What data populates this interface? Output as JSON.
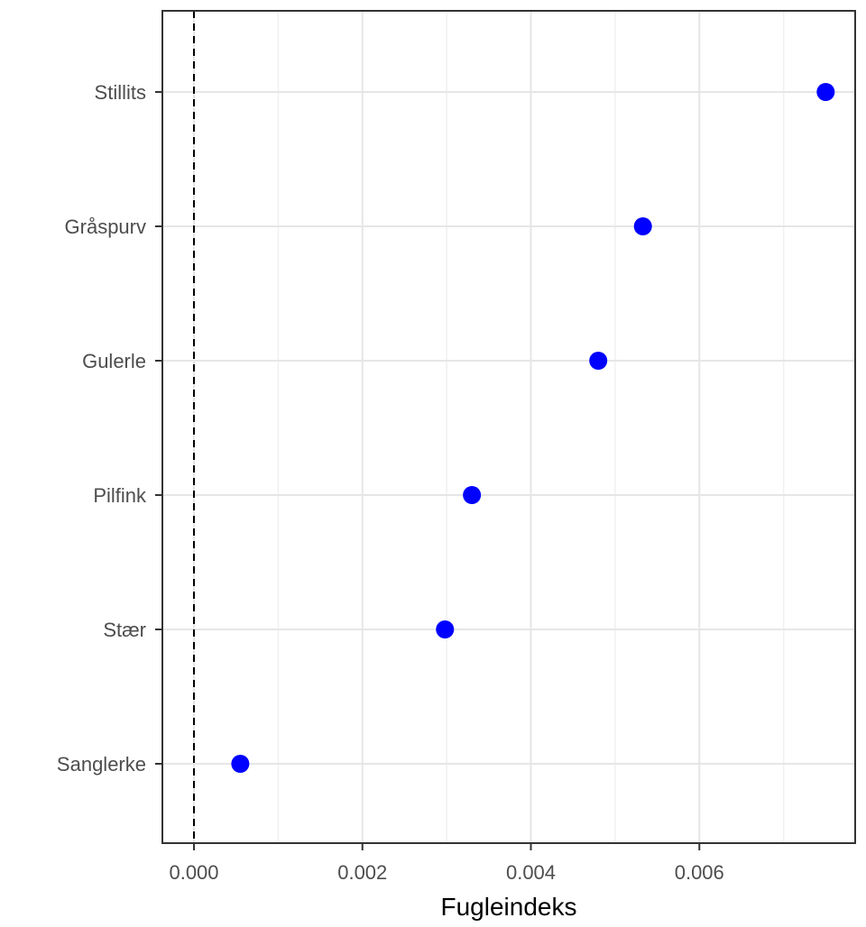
{
  "chart_data": {
    "type": "scatter",
    "title": "",
    "xlabel": "Fugleindeks",
    "ylabel": "",
    "categories": [
      "Stillits",
      "Gråspurv",
      "Gulerle",
      "Pilfink",
      "Stær",
      "Sanglerke"
    ],
    "values": [
      0.0075,
      0.00533,
      0.0048,
      0.0033,
      0.00298,
      0.00055
    ],
    "xlim": [
      -0.000375,
      0.00785
    ],
    "x_ticks": [
      0,
      0.002,
      0.004,
      0.006
    ],
    "x_tick_labels": [
      "0.000",
      "0.002",
      "0.004",
      "0.006"
    ],
    "reference_line": {
      "x": 0,
      "style": "dashed"
    },
    "grid": true,
    "point_color": "#0000ff"
  }
}
